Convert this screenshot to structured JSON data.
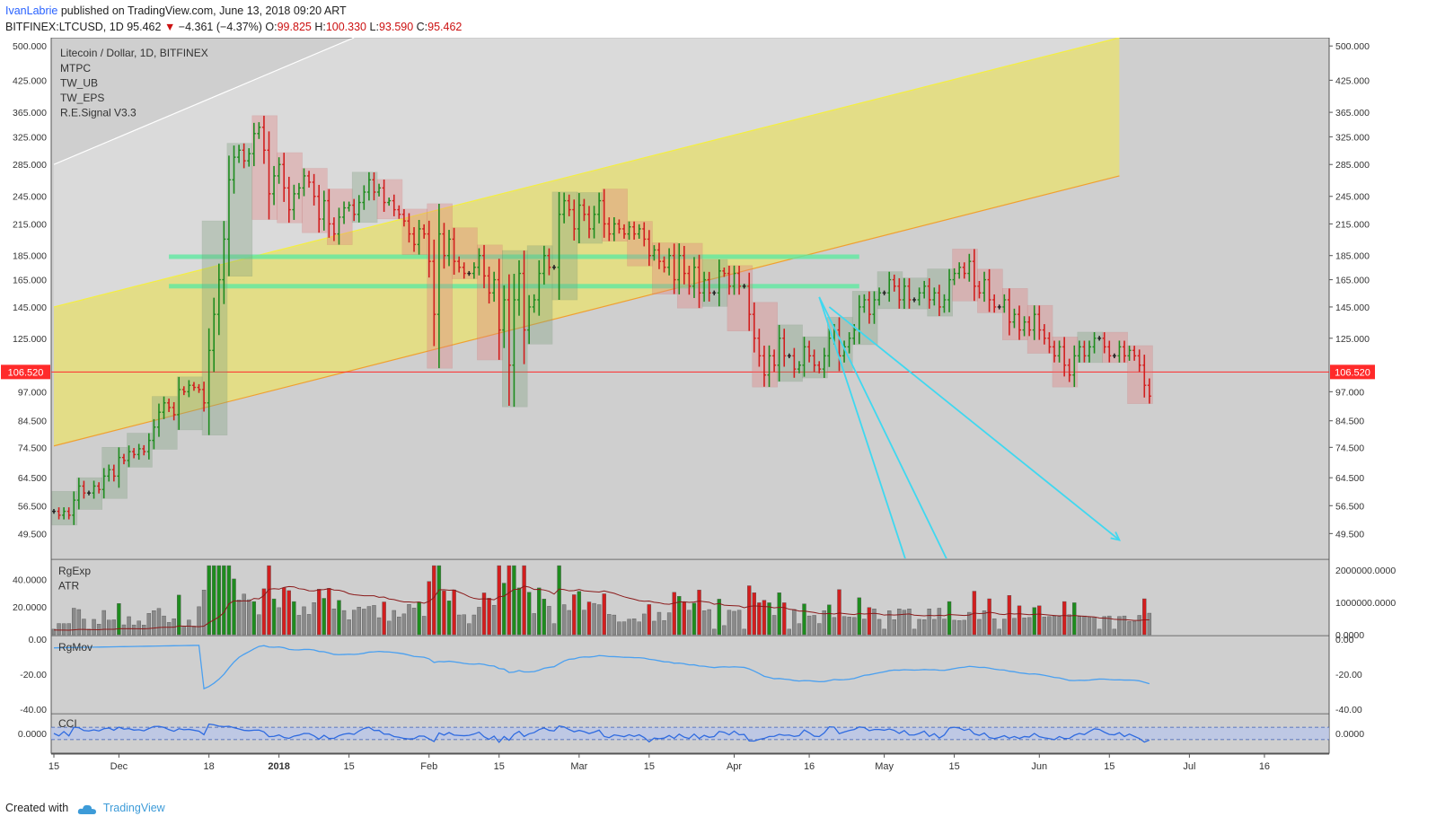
{
  "header": {
    "author": "IvanLabrie",
    "published": " published on TradingView.com, June 13, 2018 09:20 ART",
    "symbol": "BITFINEX:LTCUSD, 1D",
    "last": "95.462",
    "change_arrow": "▼",
    "change": "−4.361 (−4.37%)",
    "o_label": "O:",
    "o": "99.825",
    "h_label": "H:",
    "h": "100.330",
    "l_label": "L:",
    "l": "93.590",
    "c_label": "C:",
    "c": "95.462"
  },
  "legend": {
    "title": "Litecoin / Dollar, 1D, BITFINEX",
    "indicators": [
      "MTPC",
      "TW_UB",
      "TW_EPS",
      "R.E.Signal V3.3"
    ]
  },
  "panes": {
    "vol": {
      "labels": [
        "RgExp",
        "ATR"
      ]
    },
    "mov": {
      "label": "RgMov"
    },
    "cci": {
      "label": "CCI"
    }
  },
  "footer": {
    "created_with": "Created with",
    "brand": "TradingView"
  },
  "colors": {
    "background": "#cfcfcf",
    "channel": "#e6df7a",
    "up": "#1e8c1e",
    "down": "#d21e1e",
    "neutral": "#222222",
    "cyan": "#3fd8f0",
    "price_line": "#ff2a2a"
  },
  "chart_data": {
    "type": "candlestick",
    "price_axis": {
      "scale": "log",
      "ticks": [
        "500.000",
        "425.000",
        "365.000",
        "325.000",
        "285.000",
        "245.000",
        "215.000",
        "185.000",
        "165.000",
        "145.000",
        "125.000",
        "97.000",
        "84.500",
        "74.500",
        "64.500",
        "56.500",
        "49.500"
      ],
      "tick_values": [
        500,
        425,
        365,
        325,
        285,
        245,
        215,
        185,
        165,
        145,
        125,
        97,
        84.5,
        74.5,
        64.5,
        56.5,
        49.5
      ],
      "range": [
        44,
        520
      ]
    },
    "current_price_label": "106.520",
    "current_price": 106.52,
    "time_axis": {
      "labels": [
        "15",
        "Dec",
        "18",
        "2018",
        "15",
        "Feb",
        "15",
        "Mar",
        "15",
        "Apr",
        "16",
        "May",
        "15",
        "Jun",
        "15",
        "Jul",
        "16"
      ],
      "positions": [
        -14,
        -1,
        17,
        31,
        45,
        61,
        75,
        91,
        105,
        122,
        137,
        152,
        166,
        183,
        197,
        213,
        228
      ]
    },
    "closes": [
      55,
      54,
      55,
      54,
      58,
      62,
      60,
      60,
      62,
      61,
      65,
      67,
      65,
      71,
      70,
      73,
      72,
      74,
      73,
      77,
      82,
      88,
      92,
      90,
      87,
      98,
      97,
      100,
      99,
      98,
      92,
      118,
      140,
      165,
      200,
      265,
      295,
      305,
      290,
      300,
      330,
      340,
      305,
      248,
      270,
      285,
      255,
      230,
      248,
      255,
      270,
      262,
      245,
      220,
      240,
      215,
      205,
      222,
      232,
      235,
      225,
      238,
      250,
      265,
      250,
      255,
      238,
      240,
      230,
      225,
      218,
      205,
      195,
      210,
      205,
      180,
      140,
      205,
      185,
      200,
      180,
      175,
      170,
      170,
      175,
      185,
      168,
      155,
      165,
      130,
      150,
      110,
      150,
      170,
      130,
      145,
      150,
      170,
      185,
      175,
      175,
      225,
      240,
      230,
      210,
      235,
      225,
      210,
      225,
      240,
      215,
      205,
      215,
      210,
      205,
      212,
      205,
      210,
      200,
      185,
      190,
      180,
      175,
      185,
      165,
      185,
      170,
      160,
      175,
      155,
      165,
      155,
      155,
      172,
      170,
      160,
      170,
      160,
      160,
      140,
      125,
      115,
      105,
      115,
      110,
      125,
      115,
      115,
      108,
      110,
      120,
      115,
      110,
      108,
      115,
      125,
      130,
      115,
      120,
      125,
      130,
      145,
      150,
      140,
      150,
      155,
      155,
      165,
      160,
      150,
      160,
      150,
      150,
      155,
      160,
      150,
      155,
      145,
      150,
      165,
      170,
      175,
      170,
      180,
      160,
      155,
      165,
      150,
      145,
      145,
      150,
      135,
      140,
      130,
      135,
      130,
      140,
      130,
      125,
      120,
      115,
      120,
      110,
      105,
      115,
      120,
      115,
      120,
      125,
      125,
      120,
      115,
      115,
      120,
      115,
      118,
      115,
      110,
      100,
      95
    ],
    "opens_at": 2,
    "channel": {
      "lower": [
        [
          0,
          75
        ],
        [
          213,
          270
        ]
      ],
      "upper": [
        [
          0,
          145
        ],
        [
          213,
          520
        ]
      ],
      "outer": [
        [
          0,
          285
        ],
        [
          60,
          520
        ]
      ]
    },
    "hlines": [
      {
        "from": 23,
        "to": 161,
        "price": 184
      },
      {
        "from": 23,
        "to": 161,
        "price": 160
      },
      {
        "from": -40,
        "to": 330,
        "price": 106.52
      }
    ],
    "rays": [
      {
        "from": [
          153,
          152
        ],
        "to": [
          178,
          25
        ]
      },
      {
        "from": [
          153,
          152
        ],
        "to": [
          190,
          25
        ]
      },
      {
        "from": [
          155,
          145
        ],
        "to": [
          213,
          48
        ]
      }
    ],
    "volume_axis": {
      "left_ticks": [
        "40.0000",
        "20.0000"
      ],
      "left_values": [
        40,
        20
      ],
      "right_ticks": [
        "2000000.0000",
        "1000000.0000",
        "0.0000"
      ],
      "right_values": [
        2000000,
        1000000,
        0
      ],
      "range": [
        0,
        52
      ]
    },
    "rgmov_axis": {
      "ticks": [
        "0.00",
        "-20.00",
        "-40.00"
      ],
      "values": [
        0,
        -20,
        -40
      ],
      "range": [
        -42,
        2
      ]
    },
    "cci_axis": {
      "ticks": [
        "0.0000"
      ],
      "values": [
        0
      ],
      "band": [
        100,
        -100
      ],
      "range": [
        -320,
        320
      ]
    }
  }
}
